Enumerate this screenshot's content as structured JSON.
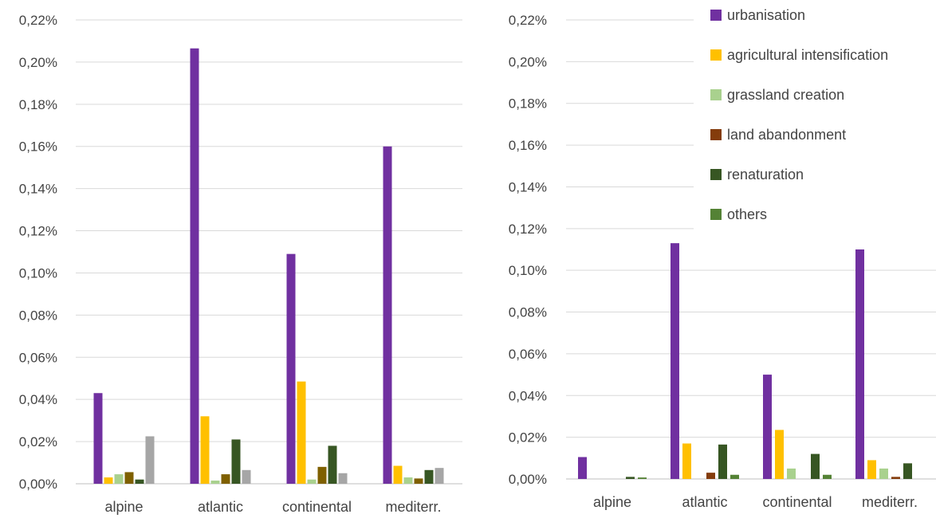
{
  "chart_data": [
    {
      "type": "bar",
      "title": "",
      "xlabel": "",
      "ylabel": "",
      "categories": [
        "alpine",
        "atlantic",
        "continental",
        "mediterr."
      ],
      "ylim": [
        0,
        0.22
      ],
      "yticks": [
        "0,00%",
        "0,02%",
        "0,04%",
        "0,06%",
        "0,08%",
        "0,10%",
        "0,12%",
        "0,14%",
        "0,16%",
        "0,18%",
        "0,20%",
        "0,22%"
      ],
      "grid": true,
      "legend": "none",
      "series": [
        {
          "color": "#7030A0",
          "values": [
            0.043,
            0.2065,
            0.109,
            0.16
          ]
        },
        {
          "color": "#FFC000",
          "values": [
            0.003,
            0.032,
            0.0485,
            0.0085
          ]
        },
        {
          "color": "#A9D18E",
          "values": [
            0.0045,
            0.0015,
            0.002,
            0.003
          ]
        },
        {
          "color": "#7F6000",
          "values": [
            0.0055,
            0.0045,
            0.008,
            0.0025
          ]
        },
        {
          "color": "#375623",
          "values": [
            0.002,
            0.021,
            0.018,
            0.0065
          ]
        },
        {
          "color": "#A6A6A6",
          "values": [
            0.0225,
            0.0065,
            0.005,
            0.0075
          ]
        }
      ]
    },
    {
      "type": "bar",
      "title": "",
      "xlabel": "",
      "ylabel": "",
      "categories": [
        "alpine",
        "atlantic",
        "continental",
        "mediterr."
      ],
      "ylim": [
        0,
        0.22
      ],
      "yticks": [
        "0,00%",
        "0,02%",
        "0,04%",
        "0,06%",
        "0,08%",
        "0,10%",
        "0,12%",
        "0,14%",
        "0,16%",
        "0,18%",
        "0,20%",
        "0,22%"
      ],
      "grid": true,
      "legend": "top-right",
      "series": [
        {
          "name": "urbanisation",
          "color": "#7030A0",
          "values": [
            0.0105,
            0.113,
            0.05,
            0.11
          ]
        },
        {
          "name": "agricultural intensification",
          "color": "#FFC000",
          "values": [
            0.0,
            0.017,
            0.0235,
            0.009
          ]
        },
        {
          "name": "grassland creation",
          "color": "#A9D18E",
          "values": [
            0.0,
            0.0,
            0.005,
            0.005
          ]
        },
        {
          "name": "land abandonment",
          "color": "#843C0C",
          "values": [
            0.0,
            0.003,
            0.0,
            0.001
          ]
        },
        {
          "name": "renaturation",
          "color": "#375623",
          "values": [
            0.001,
            0.0165,
            0.012,
            0.0075
          ]
        },
        {
          "name": "others",
          "color": "#548235",
          "values": [
            0.0007,
            0.002,
            0.002,
            0.0
          ]
        }
      ]
    }
  ]
}
